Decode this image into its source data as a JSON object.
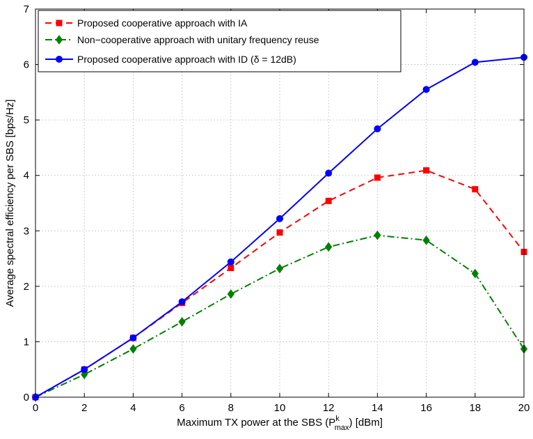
{
  "chart_data": {
    "type": "line",
    "title": "",
    "xlabel": "Maximum TX power at the SBS (P",
    "xlabel_sup": "k",
    "xlabel_sub": "max",
    "xlabel_tail": ") [dBm]",
    "ylabel": "Average spectral efficiency per SBS [bps/Hz]",
    "xlim": [
      0,
      20
    ],
    "ylim": [
      0,
      7
    ],
    "xticks": [
      0,
      2,
      4,
      6,
      8,
      10,
      12,
      14,
      16,
      18,
      20
    ],
    "yticks": [
      0,
      1,
      2,
      3,
      4,
      5,
      6,
      7
    ],
    "grid": true,
    "legend_position": "top-left",
    "x": [
      0,
      2,
      4,
      6,
      8,
      10,
      12,
      14,
      16,
      18,
      20
    ],
    "series": [
      {
        "name": "Proposed cooperative approach with IA",
        "color": "#ff0000",
        "line_style": "dashed",
        "marker": "square",
        "values": [
          0,
          0.5,
          1.07,
          1.7,
          2.33,
          2.97,
          3.54,
          3.96,
          4.09,
          3.75,
          2.62
        ]
      },
      {
        "name": "Non−cooperative approach with unitary frequency reuse",
        "color": "#008000",
        "line_style": "dash-dot",
        "marker": "diamond",
        "values": [
          0,
          0.41,
          0.87,
          1.36,
          1.86,
          2.32,
          2.71,
          2.92,
          2.83,
          2.23,
          0.87
        ]
      },
      {
        "name": "Proposed cooperative approach with ID (δ = 12dB)",
        "color": "#0000ff",
        "line_style": "solid",
        "marker": "circle",
        "values": [
          0,
          0.5,
          1.07,
          1.72,
          2.44,
          3.22,
          4.04,
          4.84,
          5.55,
          6.04,
          6.13
        ]
      }
    ]
  }
}
